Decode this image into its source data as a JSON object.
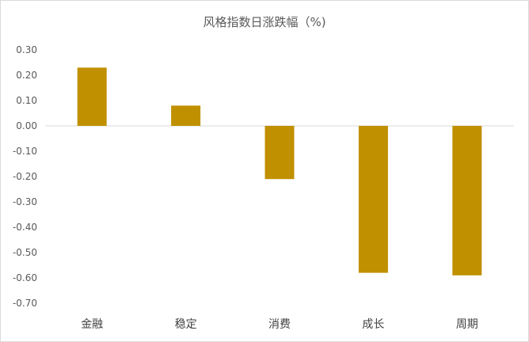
{
  "chart_data": {
    "type": "bar",
    "title": "风格指数日涨跌幅（%)",
    "categories": [
      "金融",
      "稳定",
      "消费",
      "成长",
      "周期"
    ],
    "values": [
      0.23,
      0.08,
      -0.21,
      -0.58,
      -0.59
    ],
    "ylim": [
      -0.7,
      0.3
    ],
    "yticks": [
      "0.30",
      "0.20",
      "0.10",
      "0.00",
      "-0.10",
      "-0.20",
      "-0.30",
      "-0.40",
      "-0.50",
      "-0.60",
      "-0.70"
    ],
    "xlabel": "",
    "ylabel": "",
    "grid": false,
    "legend": "none",
    "bar_color": "#C09000"
  }
}
